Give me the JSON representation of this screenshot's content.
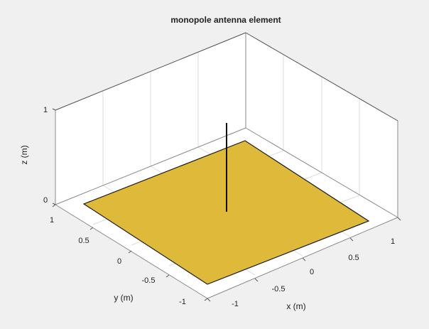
{
  "figure": {
    "title": "monopole antenna element",
    "colors": {
      "background": "#f0f0f0",
      "ground_plane": "#dfb93a",
      "ground_plane_edge": "#1a1a1a",
      "antenna": "#111111",
      "grid": "#dddddd",
      "box": "#8a8a8a"
    }
  },
  "axes": {
    "xlabel": "x (m)",
    "ylabel": "y (m)",
    "zlabel": "z (m)",
    "x_ticks": [
      "-1",
      "-0.5",
      "0",
      "0.5",
      "1"
    ],
    "y_ticks": [
      "-1",
      "-0.5",
      "0",
      "0.5",
      "1"
    ],
    "z_ticks": [
      "0",
      "1"
    ]
  }
}
